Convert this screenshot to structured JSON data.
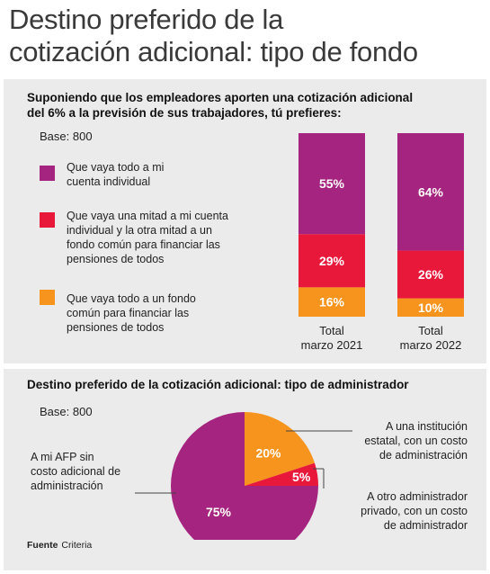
{
  "title_line1": "Destino preferido de la",
  "title_line2": "cotización adicional: tipo de fondo",
  "section1": {
    "subtitle_line1": "Suponiendo que los empleadores aporten una cotización adicional",
    "subtitle_line2": "del 6% a la previsión de sus trabajadores, tú prefieres:",
    "base": "Base: 800",
    "legend": [
      {
        "lines": [
          "Que vaya todo a mi",
          "cuenta individual"
        ],
        "color": "#a5247f"
      },
      {
        "lines": [
          "Que vaya una mitad a mi cuenta",
          "individual y la otra mitad a un",
          "fondo común para financiar las",
          "pensiones de todos"
        ],
        "color": "#e8183b"
      },
      {
        "lines": [
          "Que vaya todo a un fondo",
          "común para financiar las",
          "pensiones de todos"
        ],
        "color": "#f7941d"
      }
    ]
  },
  "section2": {
    "subtitle": "Destino preferido de la cotización adicional: tipo de administrador",
    "base": "Base: 800",
    "labels": {
      "afp": [
        "A mi AFP sin",
        "costo adicional de",
        "administración"
      ],
      "estatal": [
        "A una institución",
        "estatal, con un costo",
        "de administración"
      ],
      "otro": [
        "A otro administrador",
        "privado, con un costo",
        "de administrador"
      ]
    }
  },
  "source": {
    "label": "Fuente",
    "value": "Criteria"
  },
  "chart_data": [
    {
      "type": "bar",
      "stacked": true,
      "categories": [
        "Total marzo 2021",
        "Total marzo 2022"
      ],
      "category_lines": [
        [
          "Total",
          "marzo 2021"
        ],
        [
          "Total",
          "marzo 2022"
        ]
      ],
      "series": [
        {
          "values": [
            16,
            10
          ],
          "labels": [
            "16%",
            "10%"
          ],
          "color": "#f7941d"
        },
        {
          "values": [
            29,
            26
          ],
          "labels": [
            "29%",
            "26%"
          ],
          "color": "#e8183b"
        },
        {
          "values": [
            55,
            64
          ],
          "labels": [
            "55%",
            "64%"
          ],
          "color": "#a5247f"
        }
      ],
      "ylim": [
        0,
        100
      ]
    },
    {
      "type": "pie",
      "slices": [
        {
          "value": 20,
          "label": "20%",
          "color": "#f7941d"
        },
        {
          "value": 5,
          "label": "5%",
          "color": "#e8183b"
        },
        {
          "value": 75,
          "label": "75%",
          "color": "#a5247f"
        }
      ]
    }
  ]
}
